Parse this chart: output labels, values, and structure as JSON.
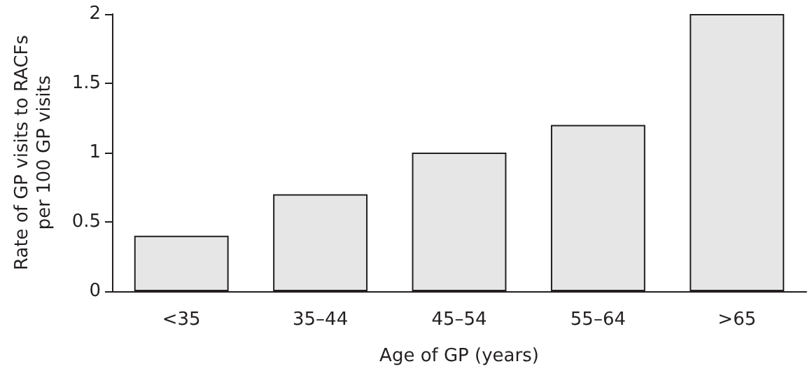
{
  "chart_data": {
    "type": "bar",
    "categories": [
      "<35",
      "35–44",
      "45–54",
      "55–64",
      ">65"
    ],
    "values": [
      0.4,
      0.7,
      1,
      1.2,
      2
    ],
    "color": "#e6e6e6",
    "xlabel": "Age of GP (years)",
    "ylabel": "Rate of GP visits to RACFs\nper 100 GP visits",
    "ylim": [
      0,
      2
    ],
    "yticks": [
      0,
      0.5,
      1,
      1.5,
      2
    ],
    "grid": false
  }
}
